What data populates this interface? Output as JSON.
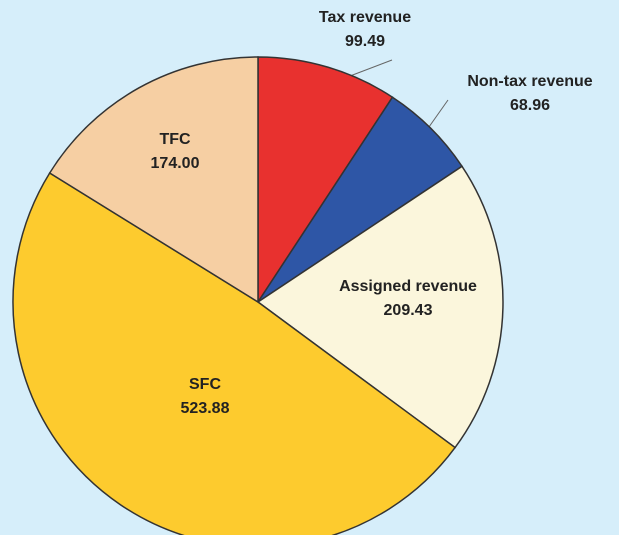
{
  "chart_data": {
    "type": "pie",
    "categories": [
      "Tax revenue",
      "Non-tax revenue",
      "Assigned revenue",
      "SFC",
      "TFC"
    ],
    "values": [
      99.49,
      68.96,
      209.43,
      523.88,
      174.0
    ],
    "value_labels": [
      "99.49",
      "68.96",
      "209.43",
      "523.88",
      "174.00"
    ],
    "colors": [
      "#e8312f",
      "#2e56a6",
      "#fbf6dc",
      "#fdcb2e",
      "#f6cfa3"
    ]
  }
}
